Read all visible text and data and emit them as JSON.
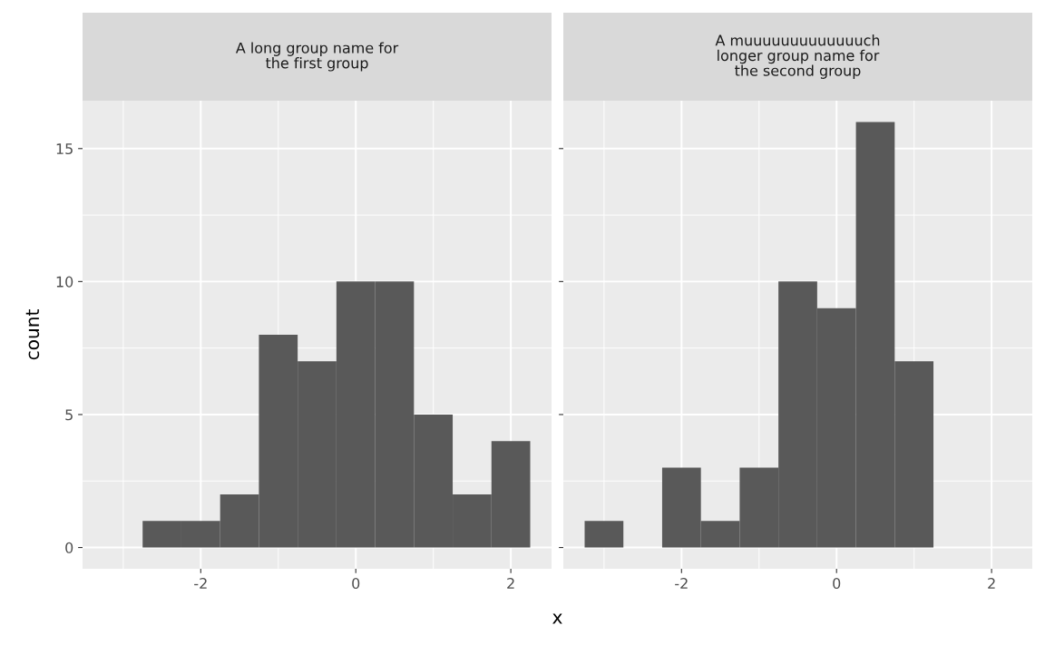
{
  "chart_data": [
    {
      "type": "histogram",
      "title": "A long group name for\nthe first group",
      "xlabel": "x",
      "ylabel": "count",
      "color": "#595959",
      "bins": [
        -3.25,
        -2.75,
        -2.25,
        -1.75,
        -1.25,
        -0.75,
        -0.25,
        0.25,
        0.75,
        1.25,
        1.75,
        2.25
      ],
      "values": [
        0,
        1,
        1,
        2,
        8,
        7,
        10,
        10,
        5,
        2,
        4
      ],
      "xlim": [
        -3.525,
        2.525
      ],
      "ylim": [
        -0.8,
        16.8
      ],
      "xticks": [
        -2,
        0,
        2
      ],
      "yticks": [
        0,
        5,
        10,
        15
      ],
      "grid": true
    },
    {
      "type": "histogram",
      "title": "A muuuuuuuuuuuuuch\nlonger group name for\nthe second group",
      "color": "#595959",
      "bins": [
        -3.25,
        -2.75,
        -2.25,
        -1.75,
        -1.25,
        -0.75,
        -0.25,
        0.25,
        0.75,
        1.25,
        1.75,
        2.25
      ],
      "values": [
        1,
        0,
        3,
        1,
        3,
        10,
        9,
        16,
        7,
        0,
        0
      ],
      "xlim": [
        -3.525,
        2.525
      ],
      "ylim": [
        -0.8,
        16.8
      ],
      "xticks": [
        -2,
        0,
        2
      ],
      "yticks": [
        0,
        5,
        10,
        15
      ],
      "grid": true,
      "tick_labels": "x"
    }
  ]
}
